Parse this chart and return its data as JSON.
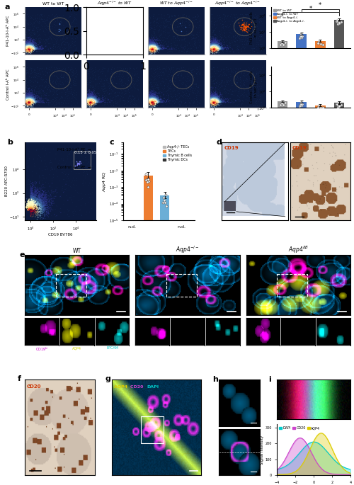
{
  "panel_a_bar1_values": [
    7,
    60,
    8,
    3000
  ],
  "panel_a_bar1_errors": [
    3,
    20,
    3,
    1200
  ],
  "panel_a_bar2_values": [
    6,
    5,
    2,
    4
  ],
  "panel_a_bar2_errors": [
    2,
    2,
    1,
    2
  ],
  "panel_a_colors": [
    "#999999",
    "#4472c4",
    "#ed7d31",
    "#555555"
  ],
  "panel_a_labels": [
    "WT to WT",
    "Aqp4-/- to WT",
    "WT to Aqp4-/-",
    "Aqp4-/- to Aqp4-/-"
  ],
  "panel_c_values_tec": 0.005,
  "panel_c_values_bcell": 0.0003,
  "panel_c_err_tec": 0.003,
  "panel_c_err_bcell": 0.0002,
  "panel_c_colors": [
    "#b8b8b8",
    "#ed7d31",
    "#6baed6",
    "#333333"
  ],
  "panel_c_labels": [
    "Aqp4-/- TECs",
    "TECs",
    "Thymic B cells",
    "Thymic DCs"
  ],
  "panel_i_dapi_color": "#00cccc",
  "panel_i_cd20_color": "#cc44cc",
  "panel_i_aqp4_color": "#ddcc00",
  "background_color": "#ffffff",
  "panel_label_size": 8,
  "flow_bg": "#0d1b3e",
  "flow_dot_blue": "#2255aa",
  "flow_dot_teal": "#00aaaa",
  "flow_hot_orange": "#ff6600",
  "flow_cluster_dense": "#ff3300"
}
